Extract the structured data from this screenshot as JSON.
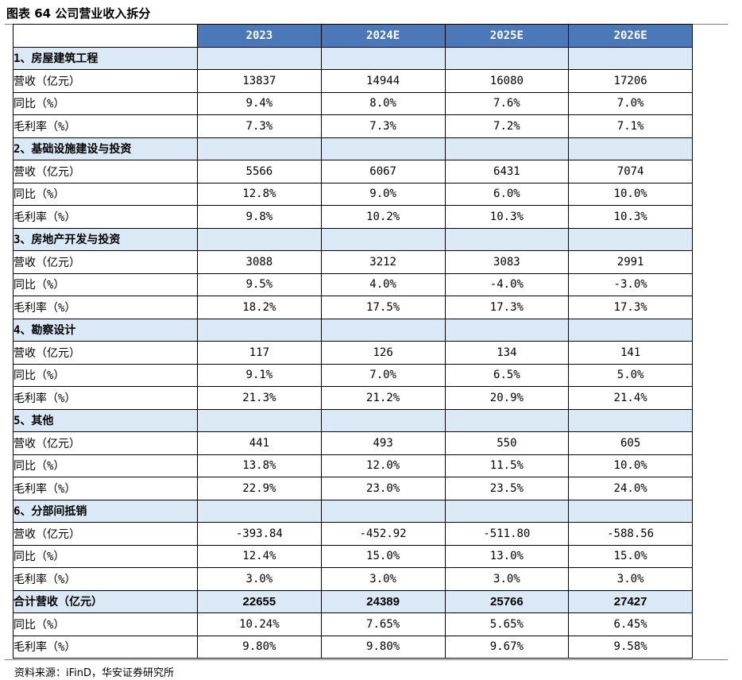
{
  "title": "图表 64 公司营业收入拆分",
  "columns": [
    "",
    "2023",
    "2024E",
    "2025E",
    "2026E"
  ],
  "sections": [
    {
      "label": "1、房屋建筑工程",
      "rows": [
        {
          "label": "营收（亿元）",
          "values": [
            "13837",
            "14944",
            "16080",
            "17206"
          ]
        },
        {
          "label": "同比（%）",
          "values": [
            "9.4%",
            "8.0%",
            "7.6%",
            "7.0%"
          ]
        },
        {
          "label": "毛利率（%）",
          "values": [
            "7.3%",
            "7.3%",
            "7.2%",
            "7.1%"
          ]
        }
      ]
    },
    {
      "label": "2、基础设施建设与投资",
      "rows": [
        {
          "label": "营收（亿元）",
          "values": [
            "5566",
            "6067",
            "6431",
            "7074"
          ]
        },
        {
          "label": "同比（%）",
          "values": [
            "12.8%",
            "9.0%",
            "6.0%",
            "10.0%"
          ]
        },
        {
          "label": "毛利率（%）",
          "values": [
            "9.8%",
            "10.2%",
            "10.3%",
            "10.3%"
          ]
        }
      ]
    },
    {
      "label": "3、房地产开发与投资",
      "rows": [
        {
          "label": "营收（亿元）",
          "values": [
            "3088",
            "3212",
            "3083",
            "2991"
          ]
        },
        {
          "label": "同比（%）",
          "values": [
            "9.5%",
            "4.0%",
            "-4.0%",
            "-3.0%"
          ]
        },
        {
          "label": "毛利率（%）",
          "values": [
            "18.2%",
            "17.5%",
            "17.3%",
            "17.3%"
          ]
        }
      ]
    },
    {
      "label": "4、勘察设计",
      "rows": [
        {
          "label": "营收（亿元）",
          "values": [
            "117",
            "126",
            "134",
            "141"
          ]
        },
        {
          "label": "同比（%）",
          "values": [
            "9.1%",
            "7.0%",
            "6.5%",
            "5.0%"
          ]
        },
        {
          "label": "毛利率（%）",
          "values": [
            "21.3%",
            "21.2%",
            "20.9%",
            "21.4%"
          ]
        }
      ]
    },
    {
      "label": "5、其他",
      "rows": [
        {
          "label": "营收（亿元）",
          "values": [
            "441",
            "493",
            "550",
            "605"
          ]
        },
        {
          "label": "同比（%）",
          "values": [
            "13.8%",
            "12.0%",
            "11.5%",
            "10.0%"
          ]
        },
        {
          "label": "毛利率（%）",
          "values": [
            "22.9%",
            "23.0%",
            "23.5%",
            "24.0%"
          ]
        }
      ]
    },
    {
      "label": "6、分部间抵销",
      "rows": [
        {
          "label": "营收（亿元）",
          "values": [
            "-393.84",
            "-452.92",
            "-511.80",
            "-588.56"
          ]
        },
        {
          "label": "同比（%）",
          "values": [
            "12.4%",
            "15.0%",
            "13.0%",
            "15.0%"
          ]
        },
        {
          "label": "毛利率（%）",
          "values": [
            "3.0%",
            "3.0%",
            "3.0%",
            "3.0%"
          ]
        }
      ]
    }
  ],
  "total": {
    "label": "合计营收（亿元）",
    "values": [
      "22655",
      "24389",
      "25766",
      "27427"
    ],
    "rows": [
      {
        "label": "同比（%）",
        "values": [
          "10.24%",
          "7.65%",
          "5.65%",
          "6.45%"
        ]
      },
      {
        "label": "毛利率（%）",
        "values": [
          "9.80%",
          "9.80%",
          "9.67%",
          "9.58%"
        ]
      }
    ]
  },
  "source": "资料来源：iFinD，华安证券研究所"
}
